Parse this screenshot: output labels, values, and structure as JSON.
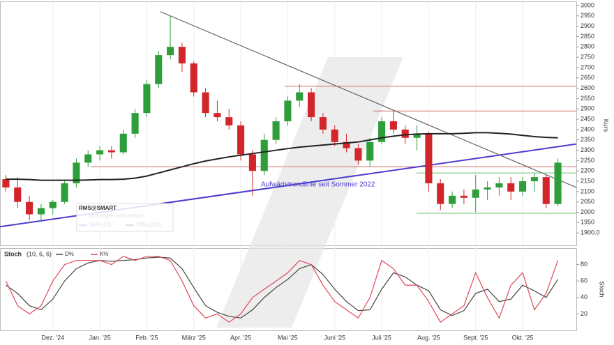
{
  "chart_data": [
    {
      "type": "candlestick",
      "categories": [
        null,
        null,
        null,
        null,
        "Dez. '24",
        null,
        null,
        null,
        "Jan. '25",
        null,
        null,
        null,
        "Feb. '25",
        null,
        null,
        null,
        "März '25",
        null,
        null,
        null,
        "Apr. '25",
        null,
        null,
        null,
        "Mai '25",
        null,
        null,
        null,
        "Juni '25",
        null,
        null,
        null,
        "Juli '25",
        null,
        null,
        null,
        "Aug. '25",
        null,
        null,
        null,
        "Sept. '25",
        null,
        null,
        null,
        "Okt. '25",
        null,
        null,
        null
      ],
      "open": [
        2160,
        2120,
        2050,
        1990,
        2020,
        2050,
        2140,
        2240,
        2280,
        2300,
        2290,
        2380,
        2480,
        2620,
        2760,
        2800,
        2720,
        2580,
        2480,
        2460,
        2420,
        2280,
        2200,
        2350,
        2440,
        2540,
        2580,
        2460,
        2400,
        2340,
        2310,
        2250,
        2340,
        2440,
        2400,
        2360,
        2380,
        2140,
        2040,
        2080,
        2070,
        2110,
        2120,
        2140,
        2100,
        2150,
        2170,
        2040
      ],
      "high": [
        2180,
        2170,
        2080,
        2040,
        2060,
        2150,
        2260,
        2300,
        2320,
        2320,
        2400,
        2500,
        2640,
        2780,
        2950,
        2820,
        2730,
        2600,
        2540,
        2500,
        2440,
        2300,
        2380,
        2460,
        2560,
        2620,
        2600,
        2480,
        2420,
        2380,
        2330,
        2360,
        2460,
        2490,
        2420,
        2420,
        2390,
        2160,
        2100,
        2110,
        2180,
        2150,
        2170,
        2170,
        2170,
        2190,
        2180,
        2260
      ],
      "low": [
        2100,
        2020,
        1960,
        1960,
        1990,
        2040,
        2120,
        2220,
        2250,
        2260,
        2280,
        2360,
        2460,
        2600,
        2740,
        2680,
        2560,
        2460,
        2440,
        2400,
        2250,
        2080,
        2180,
        2330,
        2420,
        2510,
        2440,
        2380,
        2320,
        2290,
        2230,
        2220,
        2330,
        2380,
        2330,
        2300,
        2100,
        2010,
        2020,
        2040,
        2000,
        2060,
        2080,
        2060,
        2080,
        2100,
        2020,
        2030
      ],
      "close": [
        2120,
        2050,
        1990,
        2020,
        2050,
        2140,
        2240,
        2280,
        2300,
        2290,
        2380,
        2480,
        2620,
        2760,
        2800,
        2720,
        2580,
        2480,
        2460,
        2420,
        2280,
        2200,
        2350,
        2440,
        2540,
        2580,
        2460,
        2400,
        2340,
        2310,
        2250,
        2340,
        2440,
        2400,
        2360,
        2380,
        2140,
        2040,
        2080,
        2070,
        2110,
        2120,
        2140,
        2100,
        2150,
        2170,
        2040,
        2240
      ],
      "up_color": "#2e9e3a",
      "down_color": "#d2262b",
      "series": [
        {
          "name": "SMA(200)",
          "color": "#222222",
          "values": [
            2160,
            2160,
            2158,
            2155,
            2155,
            2155,
            2155,
            2156,
            2158,
            2158,
            2160,
            2165,
            2175,
            2190,
            2205,
            2220,
            2235,
            2248,
            2258,
            2268,
            2276,
            2284,
            2292,
            2300,
            2308,
            2315,
            2320,
            2325,
            2330,
            2335,
            2340,
            2350,
            2360,
            2368,
            2375,
            2378,
            2380,
            2380,
            2380,
            2382,
            2385,
            2385,
            2382,
            2378,
            2372,
            2366,
            2362,
            2360
          ]
        }
      ],
      "legend": {
        "title": "RMS@SMART",
        "entries": [
          {
            "name": "Vorheriger Schlusskurs"
          },
          {
            "name": "SMA(20)",
            "color": "#3b3bbf"
          }
        ]
      },
      "levels": [
        {
          "value": 2610,
          "color": "#d06a6a"
        },
        {
          "value": 2490,
          "color": "#d06a6a"
        },
        {
          "value": 2220,
          "color": "#d06a6a"
        },
        {
          "value": 2190,
          "color": "#6fbf6f"
        },
        {
          "value": 1995,
          "color": "#6fbf6f"
        }
      ],
      "trendlines": [
        {
          "name": "Aufwärtstrendlinie seit Sommer 2022",
          "color": "#4a3ccf",
          "values": [
            1930,
            2330
          ]
        },
        {
          "color": "#666666",
          "values": [
            2970,
            2120
          ]
        }
      ],
      "ylabel": "Kurs",
      "ylim": [
        1840,
        3020
      ],
      "yticks": [
        {
          "value": 1900,
          "label": "1900.0"
        },
        1950,
        2000,
        2050,
        2100,
        2150,
        2200,
        2250,
        2300,
        2350,
        2400,
        2450,
        2500,
        2550,
        2600,
        2650,
        2700,
        2750,
        2800,
        2850,
        2900,
        2950,
        3000
      ]
    },
    {
      "type": "line",
      "title": "Stoch",
      "subtitle": "(10, 6, 6)",
      "series": [
        {
          "name": "D%",
          "color": "#444444",
          "values": [
            55,
            45,
            30,
            25,
            38,
            60,
            75,
            82,
            85,
            84,
            85,
            86,
            88,
            89,
            88,
            75,
            52,
            30,
            22,
            17,
            15,
            25,
            40,
            52,
            62,
            75,
            80,
            68,
            50,
            35,
            24,
            25,
            50,
            70,
            65,
            55,
            48,
            25,
            18,
            24,
            45,
            50,
            35,
            38,
            55,
            48,
            40,
            62
          ]
        },
        {
          "name": "K%",
          "color": "#e04858",
          "values": [
            60,
            30,
            20,
            30,
            60,
            80,
            85,
            85,
            85,
            80,
            90,
            85,
            90,
            90,
            85,
            60,
            30,
            15,
            20,
            10,
            20,
            40,
            50,
            60,
            70,
            85,
            80,
            55,
            35,
            25,
            15,
            40,
            85,
            75,
            55,
            55,
            35,
            10,
            20,
            30,
            70,
            40,
            15,
            55,
            70,
            25,
            45,
            85
          ]
        }
      ],
      "ylabel": "Stoch",
      "ylim": [
        0,
        100
      ],
      "yticks": [
        20,
        40,
        60,
        80
      ]
    }
  ]
}
